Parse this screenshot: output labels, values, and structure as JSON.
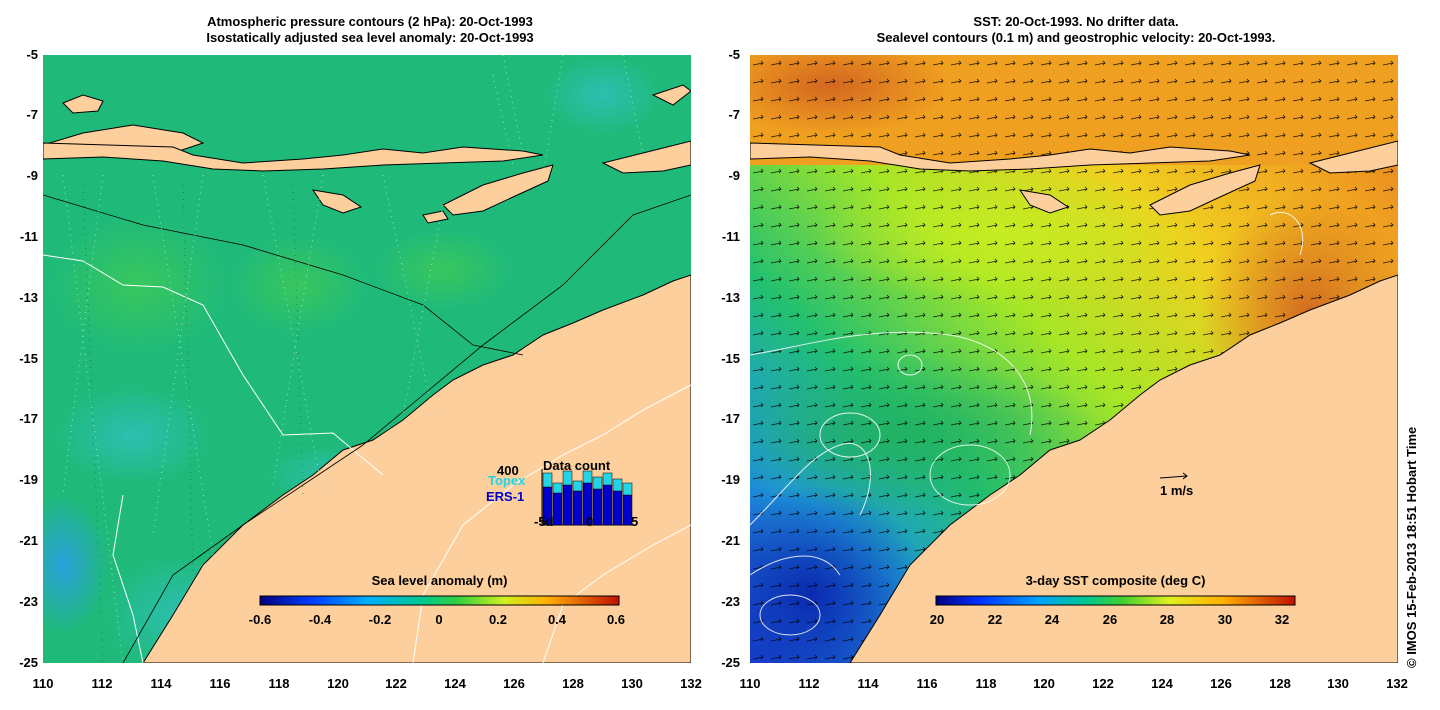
{
  "left_panel": {
    "title_line1": "Atmospheric pressure contours (2 hPa): 20-Oct-1993",
    "title_line2": "Isostatically adjusted sea level anomaly: 20-Oct-1993",
    "y_ticks": [
      "-5",
      "-7",
      "-9",
      "-11",
      "-13",
      "-15",
      "-17",
      "-19",
      "-21",
      "-23",
      "-25"
    ],
    "x_ticks": [
      "110",
      "112",
      "114",
      "116",
      "118",
      "120",
      "122",
      "124",
      "126",
      "128",
      "130",
      "132"
    ],
    "colorbar": {
      "label": "Sea level anomaly (m)",
      "ticks": [
        "-0.6",
        "-0.4",
        "-0.2",
        "0",
        "0.2",
        "0.4",
        "0.6"
      ],
      "range": [
        -0.6,
        0.6
      ]
    },
    "data_count": {
      "title": "Data count",
      "max_label": "400",
      "topex_label": "Topex",
      "ers1_label": "ERS-1",
      "x_ticks": [
        "-5d",
        "0",
        "5"
      ],
      "topex_color": "#22d5e6",
      "ers1_color": "#0000cc"
    }
  },
  "right_panel": {
    "title_line1": "SST: 20-Oct-1993. No drifter data.",
    "title_line2": "Sealevel contours (0.1 m) and geostrophic velocity: 20-Oct-1993.",
    "y_ticks": [
      "-5",
      "-7",
      "-9",
      "-11",
      "-13",
      "-15",
      "-17",
      "-19",
      "-21",
      "-23",
      "-25"
    ],
    "x_ticks": [
      "110",
      "112",
      "114",
      "116",
      "118",
      "120",
      "122",
      "124",
      "126",
      "128",
      "130",
      "132"
    ],
    "colorbar": {
      "label": "3-day SST composite (deg C)",
      "ticks": [
        "20",
        "22",
        "24",
        "26",
        "28",
        "30",
        "32"
      ],
      "range": [
        20,
        32.5
      ]
    },
    "velocity_scale_label": "1 m/s"
  },
  "copyright": "© IMOS 15-Feb-2013 18:51 Hobart Time",
  "colors": {
    "land": "#fccf9c",
    "sea_green": "#1fba7a",
    "sst_yellow": "#d6f02a",
    "sst_orange": "#f0a020"
  }
}
